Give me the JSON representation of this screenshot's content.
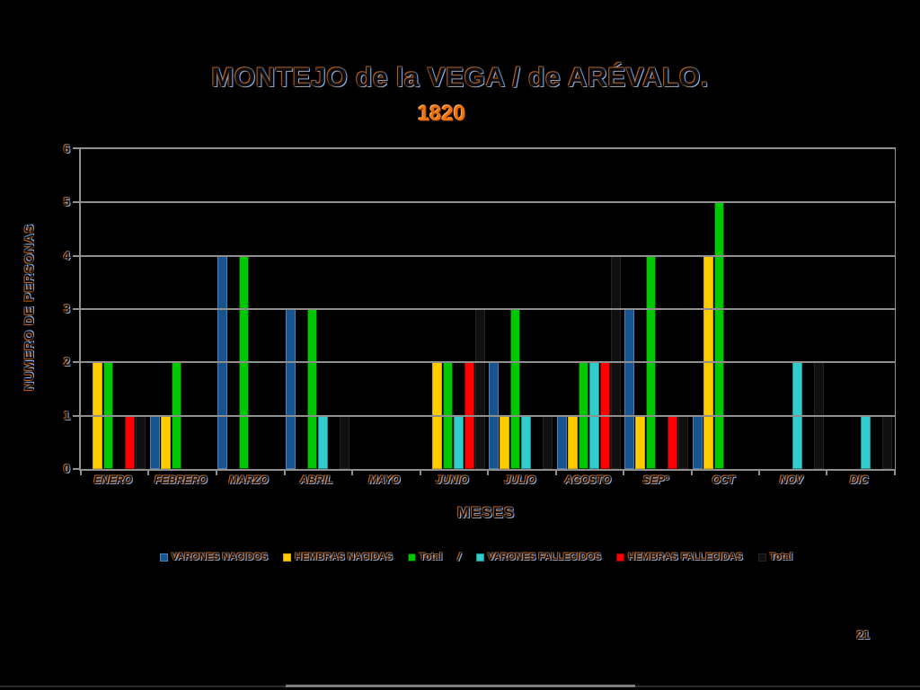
{
  "page_number": "21",
  "colors": {
    "background": "#000000",
    "gridline": "#8F8F8F",
    "axis": "#8F8F8F",
    "subtitle_orange": "#EE7211",
    "bottom_bar": "#7D7D7D"
  },
  "chart_data": {
    "type": "bar",
    "title": "MONTEJO de la VEGA / de ARÉVALO.",
    "subtitle": "1820",
    "xlabel": "MESES",
    "ylabel": "NUMERO DE PERSONAS",
    "ylim": [
      0,
      6
    ],
    "yticks": [
      0,
      1,
      2,
      3,
      4,
      5,
      6
    ],
    "grid": true,
    "legend_position": "bottom",
    "legend_separator": "/",
    "legend_separator_after_index": 2,
    "categories": [
      "ENERO",
      "FEBRERO",
      "MARZO",
      "ABRIL",
      "MAYO",
      "JUNIO",
      "JULIO",
      "AGOSTO",
      "SEPº",
      "OCT",
      "NOV",
      "DIC"
    ],
    "series": [
      {
        "name": "VARONES NACIDOS",
        "color": "#17538F",
        "edge": "#4D80B5",
        "values": [
          0,
          1,
          4,
          3,
          0,
          0,
          2,
          1,
          3,
          1,
          0,
          0
        ]
      },
      {
        "name": "HEMBRAS NACIDAS",
        "color": "#FFCC00",
        "edge": "#D9A400",
        "values": [
          2,
          1,
          0,
          0,
          0,
          2,
          1,
          1,
          1,
          4,
          0,
          0
        ]
      },
      {
        "name": "Total",
        "color": "#00C800",
        "edge": "#004A00",
        "values": [
          2,
          2,
          4,
          3,
          0,
          2,
          3,
          2,
          4,
          5,
          0,
          0
        ]
      },
      {
        "name": "VARONES FALLECIDOS",
        "color": "#33CCCC",
        "edge": "#1A8F8F",
        "values": [
          0,
          0,
          0,
          1,
          0,
          1,
          1,
          2,
          0,
          0,
          2,
          1
        ]
      },
      {
        "name": "HEMBRAS FALLECIDAS",
        "color": "#FF0000",
        "edge": "#8F0000",
        "values": [
          1,
          0,
          0,
          0,
          0,
          2,
          0,
          2,
          1,
          0,
          0,
          0
        ]
      },
      {
        "name": "Total",
        "color": "#101010",
        "edge": "#232323",
        "values": [
          1,
          0,
          0,
          1,
          0,
          3,
          1,
          4,
          1,
          0,
          2,
          1
        ]
      }
    ]
  }
}
